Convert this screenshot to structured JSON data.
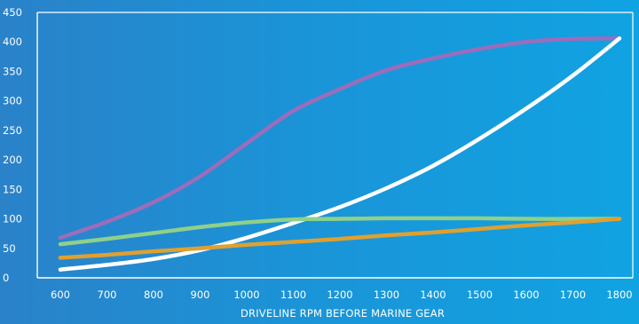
{
  "chart_data": {
    "type": "line",
    "title": "",
    "xlabel": "DRIVELINE RPM BEFORE MARINE GEAR",
    "ylabel": "",
    "xlim": [
      600,
      1800
    ],
    "ylim": [
      0,
      450
    ],
    "x_ticks": [
      600,
      700,
      800,
      900,
      1000,
      1100,
      1200,
      1300,
      1400,
      1500,
      1600,
      1700,
      1800
    ],
    "y_ticks": [
      0,
      50,
      100,
      150,
      200,
      250,
      300,
      350,
      400,
      450
    ],
    "grid": false,
    "legend": "none",
    "x": [
      600,
      700,
      800,
      900,
      1000,
      1100,
      1200,
      1300,
      1400,
      1500,
      1600,
      1700,
      1800
    ],
    "series": [
      {
        "color": "#9b6dbb",
        "values": [
          68,
          95,
          128,
          172,
          228,
          283,
          320,
          352,
          372,
          388,
          400,
          405,
          406
        ]
      },
      {
        "color": "#ffffff",
        "values": [
          14,
          22,
          32,
          47,
          68,
          93,
          120,
          152,
          190,
          236,
          287,
          343,
          406
        ]
      },
      {
        "color": "#8fd08a",
        "values": [
          57,
          66,
          76,
          86,
          94,
          99,
          100,
          101,
          101,
          101,
          100,
          100,
          100
        ]
      },
      {
        "color": "#e0a030",
        "values": [
          34,
          39,
          45,
          50,
          56,
          61,
          66,
          72,
          77,
          83,
          89,
          94,
          100
        ]
      }
    ]
  },
  "colors": {
    "axis": "#ffffff",
    "background_start": "#2a82c9",
    "background_end": "#10a3e2"
  }
}
